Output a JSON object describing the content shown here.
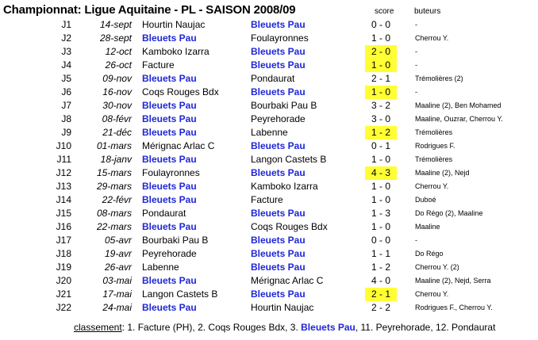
{
  "title": "Championnat: Ligue Aquitaine - PL - SAISON 2008/09",
  "headers": {
    "score": "score",
    "buteurs": "buteurs"
  },
  "team": "Bleuets Pau",
  "highlight_color": "#ffff33",
  "team_color": "#1f27d6",
  "matches": [
    {
      "j": "J1",
      "date": "14-sept",
      "home": "Hourtin Naujac",
      "away": "Bleuets Pau",
      "score": "0 - 0",
      "buteurs": "-",
      "hl": false
    },
    {
      "j": "J2",
      "date": "28-sept",
      "home": "Bleuets Pau",
      "away": "Foulayronnes",
      "score": "1 - 0",
      "buteurs": "Cherrou Y.",
      "hl": false
    },
    {
      "j": "J3",
      "date": "12-oct",
      "home": "Kamboko Izarra",
      "away": "Bleuets Pau",
      "score": "2 - 0",
      "buteurs": "-",
      "hl": true
    },
    {
      "j": "J4",
      "date": "26-oct",
      "home": "Facture",
      "away": "Bleuets Pau",
      "score": "1 - 0",
      "buteurs": "-",
      "hl": true
    },
    {
      "j": "J5",
      "date": "09-nov",
      "home": "Bleuets Pau",
      "away": "Pondaurat",
      "score": "2 - 1",
      "buteurs": "Trémolières (2)",
      "hl": false
    },
    {
      "j": "J6",
      "date": "16-nov",
      "home": "Coqs Rouges Bdx",
      "away": "Bleuets Pau",
      "score": "1 - 0",
      "buteurs": "-",
      "hl": true
    },
    {
      "j": "J7",
      "date": "30-nov",
      "home": "Bleuets Pau",
      "away": "Bourbaki Pau B",
      "score": "3 - 2",
      "buteurs": "Maaline (2), Ben Mohamed",
      "hl": false
    },
    {
      "j": "J8",
      "date": "08-févr",
      "home": "Bleuets Pau",
      "away": "Peyrehorade",
      "score": "3 - 0",
      "buteurs": "Maaline, Ouzrar, Cherrou Y.",
      "hl": false
    },
    {
      "j": "J9",
      "date": "21-déc",
      "home": "Bleuets Pau",
      "away": "Labenne",
      "score": "1 - 2",
      "buteurs": "Trémolières",
      "hl": true
    },
    {
      "j": "J10",
      "date": "01-mars",
      "home": "Mérignac Arlac C",
      "away": "Bleuets Pau",
      "score": "0 - 1",
      "buteurs": "Rodrigues F.",
      "hl": false
    },
    {
      "j": "J11",
      "date": "18-janv",
      "home": "Bleuets Pau",
      "away": "Langon Castets B",
      "score": "1 - 0",
      "buteurs": "Trémolières",
      "hl": false
    },
    {
      "j": "J12",
      "date": "15-mars",
      "home": "Foulayronnes",
      "away": "Bleuets Pau",
      "score": "4 - 3",
      "buteurs": "Maaline (2), Nejd",
      "hl": true
    },
    {
      "j": "J13",
      "date": "29-mars",
      "home": "Bleuets Pau",
      "away": "Kamboko Izarra",
      "score": "1 - 0",
      "buteurs": "Cherrou Y.",
      "hl": false
    },
    {
      "j": "J14",
      "date": "22-févr",
      "home": "Bleuets Pau",
      "away": "Facture",
      "score": "1 - 0",
      "buteurs": "Duboé",
      "hl": false
    },
    {
      "j": "J15",
      "date": "08-mars",
      "home": "Pondaurat",
      "away": "Bleuets Pau",
      "score": "1 - 3",
      "buteurs": "Do Régo (2), Maaline",
      "hl": false
    },
    {
      "j": "J16",
      "date": "22-mars",
      "home": "Bleuets Pau",
      "away": "Coqs Rouges Bdx",
      "score": "1 - 0",
      "buteurs": "Maaline",
      "hl": false
    },
    {
      "j": "J17",
      "date": "05-avr",
      "home": "Bourbaki Pau B",
      "away": "Bleuets Pau",
      "score": "0 - 0",
      "buteurs": "-",
      "hl": false
    },
    {
      "j": "J18",
      "date": "19-avr",
      "home": "Peyrehorade",
      "away": "Bleuets Pau",
      "score": "1 - 1",
      "buteurs": "Do Régo",
      "hl": false
    },
    {
      "j": "J19",
      "date": "26-avr",
      "home": "Labenne",
      "away": "Bleuets Pau",
      "score": "1 - 2",
      "buteurs": "Cherrou Y. (2)",
      "hl": false
    },
    {
      "j": "J20",
      "date": "03-mai",
      "home": "Bleuets Pau",
      "away": "Mérignac Arlac C",
      "score": "4 - 0",
      "buteurs": "Maaline (2), Nejd, Serra",
      "hl": false
    },
    {
      "j": "J21",
      "date": "17-mai",
      "home": "Langon Castets B",
      "away": "Bleuets Pau",
      "score": "2 - 1",
      "buteurs": "Cherrou Y.",
      "hl": true
    },
    {
      "j": "J22",
      "date": "24-mai",
      "home": "Bleuets Pau",
      "away": "Hourtin Naujac",
      "score": "2 - 2",
      "buteurs": "Rodrigues F., Cherrou Y.",
      "hl": false
    }
  ],
  "footer": {
    "label": "classement",
    "sep": ": ",
    "before": "1. Facture (PH), 2. Coqs Rouges Bdx, 3. ",
    "team": "Bleuets Pau",
    "after": ", 11. Peyrehorade, 12. Pondaurat"
  }
}
